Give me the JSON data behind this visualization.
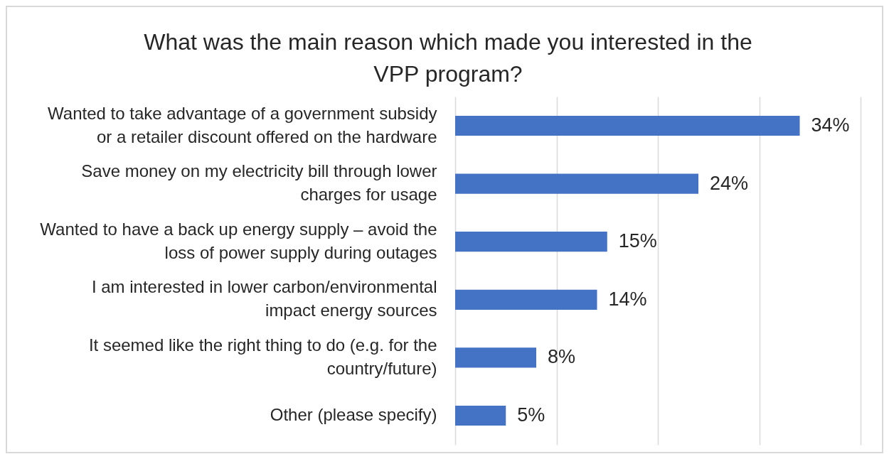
{
  "chart_data": {
    "type": "bar",
    "orientation": "horizontal",
    "title": "What was the main reason which made you interested in the VPP program?",
    "categories": [
      "Wanted to take advantage of a government subsidy or a retailer discount offered on the hardware",
      "Save money on my electricity bill through lower charges for usage",
      "Wanted to have a back up energy supply – avoid the loss of power supply during outages",
      "I am interested in lower carbon/environmental impact energy sources",
      "It seemed like the right thing to do (e.g. for the country/future)",
      "Other (please specify)"
    ],
    "values": [
      34,
      24,
      15,
      14,
      8,
      5
    ],
    "value_labels": [
      "34%",
      "24%",
      "15%",
      "14%",
      "8%",
      "5%"
    ],
    "color": "#4472c4",
    "xlim": [
      0,
      40
    ],
    "xticks": [
      {
        "value": 0,
        "label": null
      },
      {
        "value": 10,
        "label": null
      },
      {
        "value": 20,
        "label": null
      },
      {
        "value": 30,
        "label": null
      },
      {
        "value": 40,
        "label": null
      }
    ],
    "tick_labels": "y",
    "grid": "x"
  }
}
